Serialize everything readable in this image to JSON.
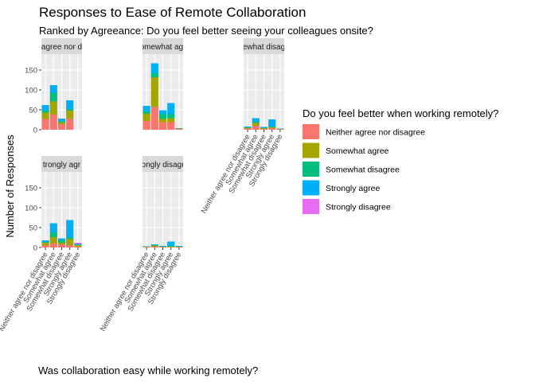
{
  "chart_data": {
    "type": "bar",
    "stacked": true,
    "faceted": true,
    "title": "Responses to Ease of Remote Collaboration",
    "subtitle": "Ranked by Agreeance: Do you feel better seeing your colleagues onsite?",
    "xlabel": "Was collaboration easy while working remotely?",
    "ylabel": "Number of Responses",
    "ylim": [
      0,
      190
    ],
    "y_ticks": [
      0,
      50,
      100,
      150
    ],
    "grid": true,
    "legend_position": "right",
    "legend_title": "Do you feel better when working remotely?",
    "categories": [
      "Neither agree nor disagree",
      "Somewhat agree",
      "Somewhat disagree",
      "Strongly agree",
      "Strongly disagree"
    ],
    "fill_levels": [
      {
        "name": "Neither agree nor disagree",
        "color": "#F8766D"
      },
      {
        "name": "Somewhat agree",
        "color": "#A3A500"
      },
      {
        "name": "Somewhat disagree",
        "color": "#00BF7D"
      },
      {
        "name": "Strongly agree",
        "color": "#00B0F6"
      },
      {
        "name": "Strongly disagree",
        "color": "#E76BF3"
      }
    ],
    "panels": [
      {
        "strip": "Neither agree nor disagree",
        "strip_visible": "agree nor d",
        "values": [
          [
            27,
            16,
            5,
            14,
            0
          ],
          [
            38,
            33,
            22,
            19,
            0
          ],
          [
            14,
            5,
            2,
            7,
            0
          ],
          [
            28,
            20,
            4,
            22,
            0
          ],
          [
            0,
            0,
            0,
            0,
            0
          ]
        ]
      },
      {
        "strip": "Somewhat agree",
        "strip_visible": "omewhat agr",
        "values": [
          [
            22,
            18,
            6,
            14,
            0
          ],
          [
            57,
            75,
            10,
            25,
            0
          ],
          [
            19,
            8,
            12,
            10,
            0
          ],
          [
            19,
            10,
            10,
            28,
            0
          ],
          [
            2,
            1,
            0,
            1,
            0
          ]
        ]
      },
      {
        "strip": "Somewhat disagree",
        "strip_visible": "ewhat disag",
        "values": [
          [
            3,
            2,
            1,
            2,
            0
          ],
          [
            10,
            7,
            3,
            9,
            0
          ],
          [
            2,
            2,
            1,
            2,
            0
          ],
          [
            4,
            2,
            2,
            18,
            0
          ],
          [
            1,
            1,
            0,
            1,
            0
          ]
        ]
      },
      {
        "strip": "Strongly agree",
        "strip_visible": "trongly agr",
        "values": [
          [
            5,
            7,
            2,
            4,
            0
          ],
          [
            10,
            16,
            12,
            23,
            0
          ],
          [
            8,
            4,
            6,
            5,
            0
          ],
          [
            6,
            15,
            4,
            44,
            0
          ],
          [
            2,
            4,
            1,
            2,
            3
          ]
        ]
      },
      {
        "strip": "Strongly disagree",
        "strip_visible": "ongly disagr",
        "values": [
          [
            1,
            1,
            0,
            1,
            0
          ],
          [
            2,
            3,
            1,
            2,
            0
          ],
          [
            1,
            1,
            0,
            2,
            0
          ],
          [
            1,
            1,
            2,
            11,
            0
          ],
          [
            1,
            1,
            0,
            2,
            0
          ]
        ]
      }
    ]
  }
}
